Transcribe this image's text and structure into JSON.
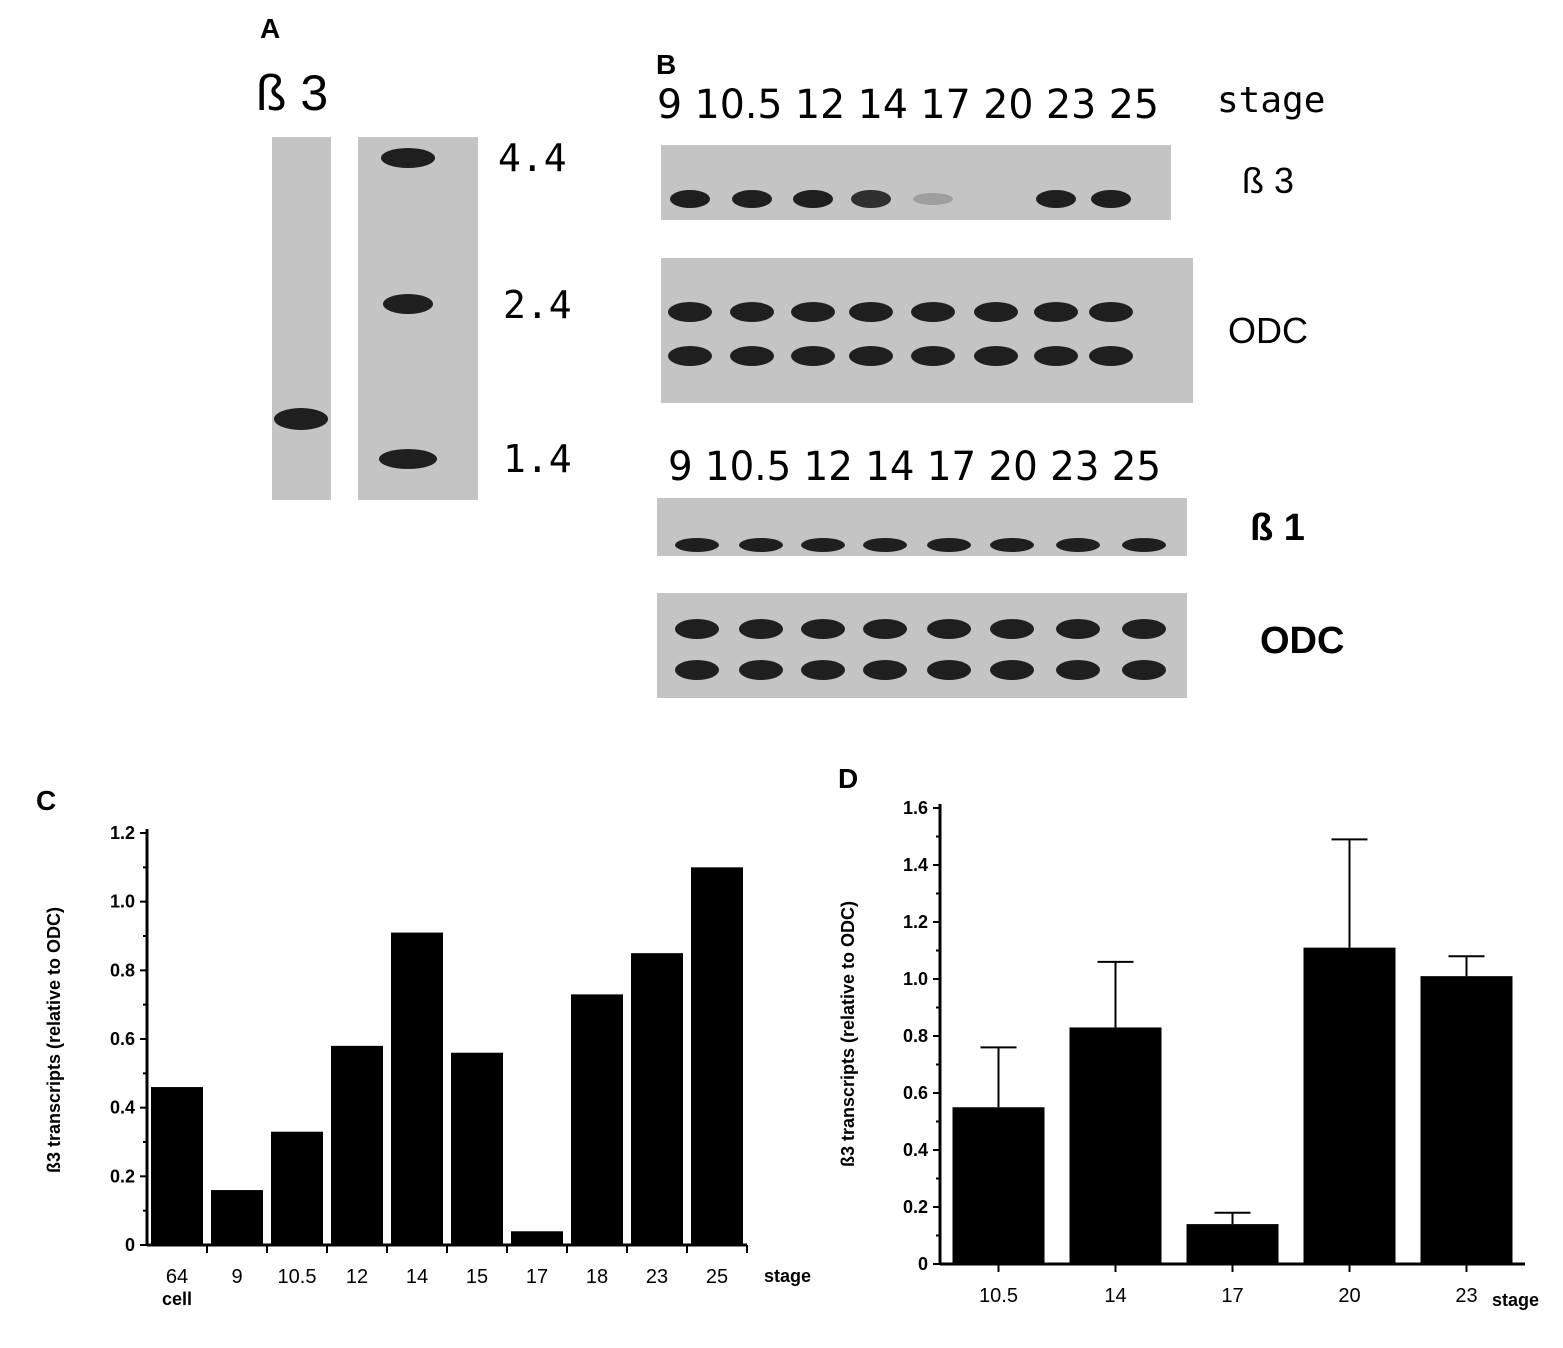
{
  "panel_a": {
    "label": "A",
    "probe": "ß 3",
    "markers": [
      "4.4",
      "2.4",
      "1.4"
    ]
  },
  "panel_b": {
    "label": "B",
    "top_lanes": "9 10.5 12 14 17 20 23 25",
    "bottom_lanes": "9 10.5 12 14 17 20 23 25",
    "stage_label": "stage",
    "blots": [
      "ß 3",
      "ODC",
      "ß 1",
      "ODC"
    ],
    "beta3_intensity": [
      1,
      1,
      1,
      0.9,
      0.25,
      0,
      1,
      1
    ]
  },
  "chart_data": [
    {
      "panel": "C",
      "type": "bar",
      "categories": [
        "64 cell",
        "9",
        "10.5",
        "12",
        "14",
        "15",
        "17",
        "18",
        "23",
        "25"
      ],
      "category_lines": [
        [
          "64",
          "cell"
        ],
        [
          "9"
        ],
        [
          "10.5"
        ],
        [
          "12"
        ],
        [
          "14"
        ],
        [
          "15"
        ],
        [
          "17"
        ],
        [
          "18"
        ],
        [
          "23"
        ],
        [
          "25"
        ]
      ],
      "values": [
        0.46,
        0.16,
        0.33,
        0.58,
        0.91,
        0.56,
        0.04,
        0.73,
        0.85,
        1.1
      ],
      "ylabel": "ß3 transcripts (relative to ODC)",
      "xlabel": "stage",
      "ylim": [
        0,
        1.2
      ],
      "yticks": [
        "0",
        "0.2",
        "0.4",
        "0.6",
        "0.8",
        "1.0",
        "1.2"
      ],
      "bar_color": "#000000"
    },
    {
      "panel": "D",
      "type": "bar",
      "categories": [
        "10.5",
        "14",
        "17",
        "20",
        "23"
      ],
      "values": [
        0.55,
        0.83,
        0.14,
        1.11,
        1.01
      ],
      "errors": [
        0.21,
        0.23,
        0.04,
        0.38,
        0.07
      ],
      "ylabel": "ß3 transcripts (relative to ODC)",
      "xlabel": "stage",
      "ylim": [
        0,
        1.6
      ],
      "yticks": [
        "0",
        "0.2",
        "0.4",
        "0.6",
        "0.8",
        "1.0",
        "1.2",
        "1.4",
        "1.6"
      ],
      "bar_color": "#000000"
    }
  ]
}
